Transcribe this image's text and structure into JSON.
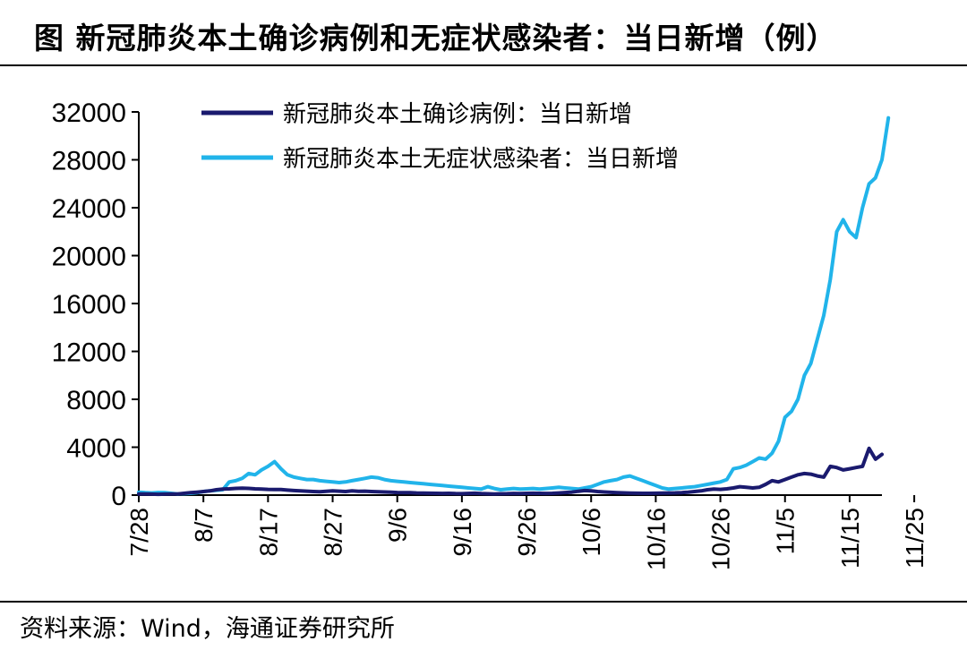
{
  "title": "图  新冠肺炎本土确诊病例和无症状感染者：当日新增（例）",
  "source": "资料来源：Wind，海通证券研究所",
  "colors": {
    "confirmed": "#1a1a6e",
    "asymptomatic": "#21b4ea",
    "axis": "#000000"
  },
  "chart_data": {
    "type": "line",
    "title": "新冠肺炎本土确诊病例和无症状感染者：当日新增（例）",
    "xlabel": "",
    "ylabel": "",
    "ylim": [
      0,
      32000
    ],
    "yticks": [
      0,
      4000,
      8000,
      12000,
      16000,
      20000,
      24000,
      28000,
      32000
    ],
    "ytick_labels": [
      "0",
      "4000",
      "8000",
      "12000",
      "16000",
      "20000",
      "24000",
      "28000",
      "32000"
    ],
    "xtick_labels": [
      "7/28",
      "8/7",
      "8/17",
      "8/27",
      "9/6",
      "9/16",
      "9/26",
      "10/6",
      "10/16",
      "10/26",
      "11/5",
      "11/15",
      "11/25"
    ],
    "legend_position": "top",
    "grid": false,
    "series": [
      {
        "name": "新冠肺炎本土确诊病例：当日新增",
        "color": "#1a1a6e",
        "values": [
          100,
          90,
          80,
          70,
          80,
          90,
          100,
          150,
          200,
          250,
          300,
          350,
          450,
          500,
          520,
          560,
          580,
          560,
          520,
          500,
          480,
          470,
          460,
          420,
          380,
          350,
          330,
          300,
          280,
          320,
          350,
          330,
          300,
          350,
          320,
          330,
          300,
          280,
          260,
          240,
          220,
          210,
          200,
          180,
          170,
          160,
          150,
          140,
          150,
          130,
          120,
          140,
          160,
          130,
          110,
          100,
          110,
          120,
          140,
          130,
          150,
          160,
          150,
          140,
          150,
          180,
          220,
          250,
          320,
          380,
          350,
          300,
          260,
          230,
          210,
          190,
          170,
          160,
          150,
          150,
          160,
          170,
          180,
          190,
          210,
          250,
          300,
          350,
          450,
          500,
          480,
          520,
          600,
          700,
          650,
          600,
          650,
          900,
          1200,
          1100,
          1300,
          1500,
          1700,
          1800,
          1750,
          1600,
          1500,
          2400,
          2300,
          2100,
          2200,
          2300,
          2400,
          3900,
          3000,
          3400
        ]
      },
      {
        "name": "新冠肺炎本土无症状感染者：当日新增",
        "color": "#21b4ea",
        "values": [
          250,
          200,
          180,
          220,
          200,
          150,
          100,
          120,
          150,
          200,
          300,
          350,
          400,
          450,
          1100,
          1200,
          1400,
          1800,
          1700,
          2100,
          2400,
          2800,
          2200,
          1700,
          1500,
          1400,
          1300,
          1300,
          1200,
          1150,
          1100,
          1050,
          1100,
          1200,
          1300,
          1400,
          1500,
          1450,
          1300,
          1200,
          1150,
          1100,
          1050,
          1000,
          950,
          900,
          850,
          800,
          750,
          700,
          650,
          600,
          550,
          500,
          700,
          550,
          450,
          500,
          550,
          500,
          520,
          550,
          500,
          550,
          600,
          650,
          600,
          550,
          500,
          600,
          700,
          900,
          1100,
          1200,
          1300,
          1500,
          1600,
          1400,
          1200,
          1000,
          800,
          600,
          500,
          550,
          600,
          650,
          700,
          800,
          900,
          1000,
          1100,
          1300,
          2200,
          2300,
          2500,
          2800,
          3100,
          3000,
          3500,
          4500,
          6500,
          7000,
          8000,
          10000,
          11000,
          13000,
          15000,
          18000,
          22000,
          23000,
          22000,
          21500,
          24000,
          26000,
          26500,
          28000,
          31500
        ]
      }
    ]
  }
}
